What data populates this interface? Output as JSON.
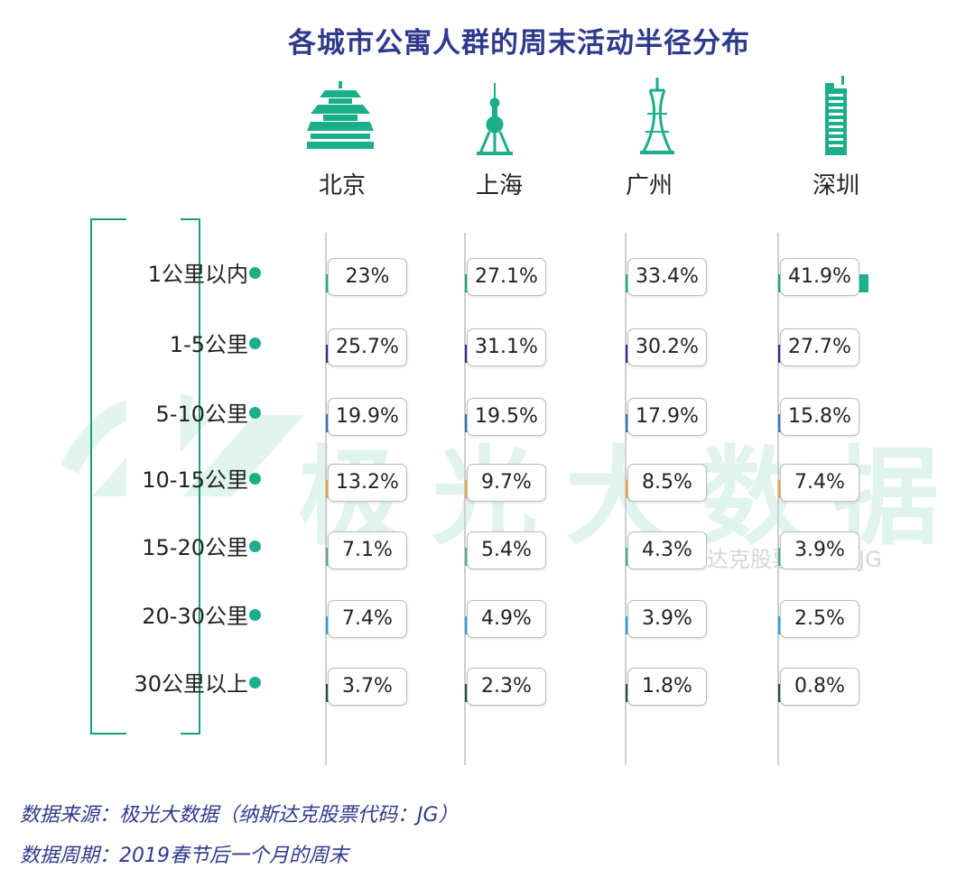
{
  "title": "各城市公寓人群的周末活动半径分布",
  "chart_data": {
    "type": "bar",
    "orientation": "horizontal",
    "title": "各城市公寓人群的周末活动半径分布",
    "categories": [
      "1公里以内",
      "1-5公里",
      "5-10公里",
      "10-15公里",
      "15-20公里",
      "20-30公里",
      "30公里以上"
    ],
    "unit": "%",
    "category_colors": [
      "#1bb28c",
      "#3a2f8f",
      "#2b7cc4",
      "#f0ab3c",
      "#52b788",
      "#1fb0e6",
      "#1d5a3c"
    ],
    "series": [
      {
        "name": "北京",
        "icon": "temple-of-heaven-icon",
        "values": [
          23,
          25.7,
          19.9,
          13.2,
          7.1,
          7.4,
          3.7
        ],
        "labels": [
          "23%",
          "25.7%",
          "19.9%",
          "13.2%",
          "7.1%",
          "7.4%",
          "3.7%"
        ]
      },
      {
        "name": "上海",
        "icon": "oriental-pearl-tower-icon",
        "values": [
          27.1,
          31.1,
          19.5,
          9.7,
          5.4,
          4.9,
          2.3
        ],
        "labels": [
          "27.1%",
          "31.1%",
          "19.5%",
          "9.7%",
          "5.4%",
          "4.9%",
          "2.3%"
        ]
      },
      {
        "name": "广州",
        "icon": "canton-tower-icon",
        "values": [
          33.4,
          30.2,
          17.9,
          8.5,
          4.3,
          3.9,
          1.8
        ],
        "labels": [
          "33.4%",
          "30.2%",
          "17.9%",
          "8.5%",
          "4.3%",
          "3.9%",
          "1.8%"
        ]
      },
      {
        "name": "深圳",
        "icon": "skyscraper-icon",
        "values": [
          41.9,
          27.7,
          15.8,
          7.4,
          3.9,
          2.5,
          0.8
        ],
        "labels": [
          "41.9%",
          "27.7%",
          "15.8%",
          "7.4%",
          "3.9%",
          "2.5%",
          "0.8%"
        ]
      }
    ],
    "xlim": [
      0,
      42
    ]
  },
  "watermark": {
    "text": "极光大数据",
    "sub": "纳斯达克股票代码：JG"
  },
  "footer": {
    "source": "数据来源：极光大数据（纳斯达克股票代码：JG）",
    "period": "数据周期：2019春节后一个月的周末"
  }
}
